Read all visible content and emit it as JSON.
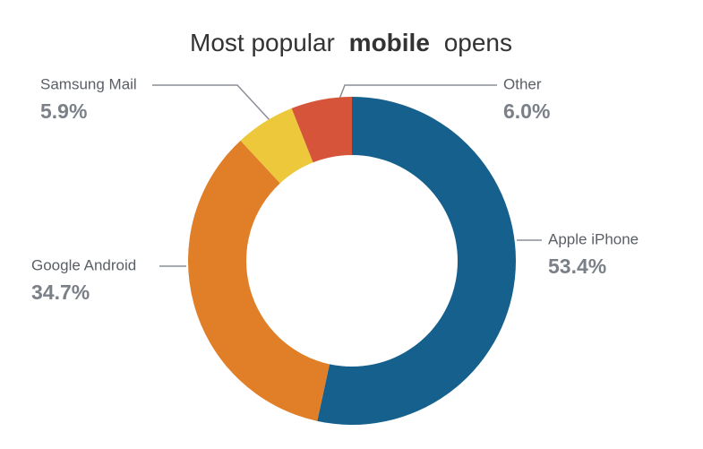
{
  "chart_data": {
    "type": "donut",
    "title": [
      "Most popular",
      "mobile",
      "opens"
    ],
    "categories": [
      "Apple iPhone",
      "Google Android",
      "Samsung Mail",
      "Other"
    ],
    "values": [
      53.4,
      34.7,
      5.9,
      6.0
    ],
    "value_labels": [
      "53.4%",
      "34.7%",
      "5.9%",
      "6.0%"
    ],
    "colors": [
      "#15608c",
      "#e07f27",
      "#ecc83a",
      "#d6553a"
    ]
  }
}
